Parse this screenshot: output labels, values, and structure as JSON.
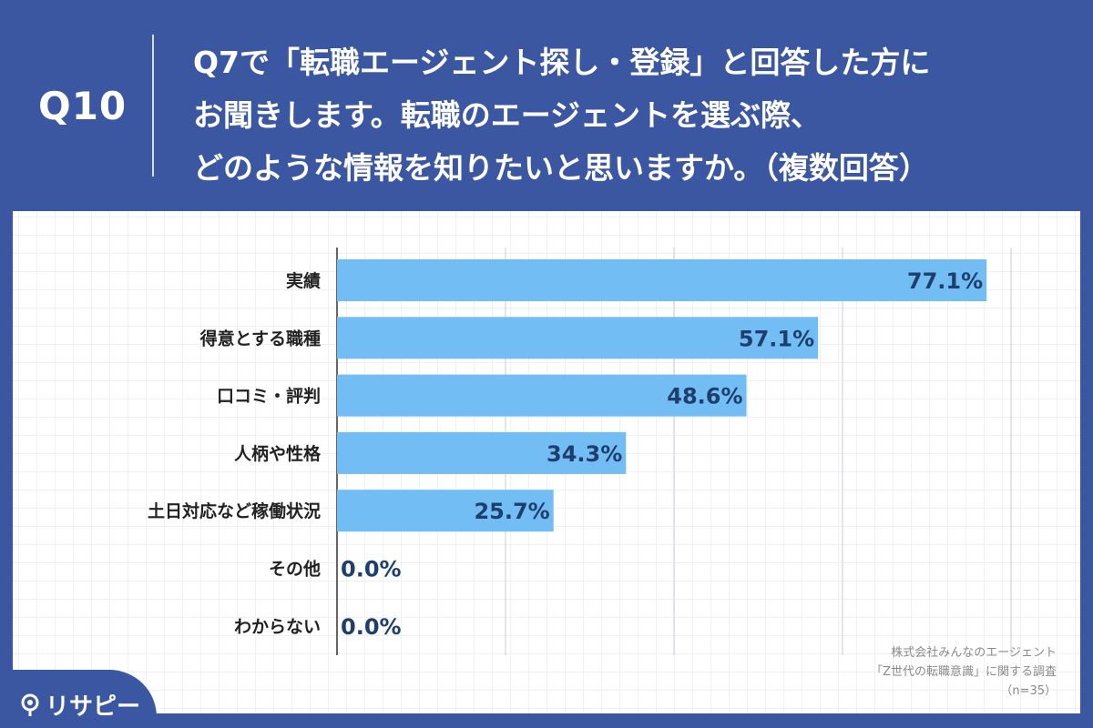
{
  "header": {
    "question_label": "Q10",
    "question_lines": [
      "Q7で「転職エージェント探し・登録」と回答した方に",
      "お聞きします。転職のエージェントを選ぶ際、",
      "どのような情報を知りたいと思いますか。（複数回答）"
    ]
  },
  "chart_data": {
    "type": "bar",
    "orientation": "horizontal",
    "categories": [
      "実績",
      "得意とする職種",
      "口コミ・評判",
      "人柄や性格",
      "土日対応など稼働状況",
      "その他",
      "わからない"
    ],
    "values": [
      77.1,
      57.1,
      48.6,
      34.3,
      25.7,
      0.0,
      0.0
    ],
    "value_labels": [
      "77.1%",
      "57.1%",
      "48.6%",
      "34.3%",
      "25.7%",
      "0.0%",
      "0.0%"
    ],
    "xlim": [
      0,
      80
    ],
    "grid": true,
    "bar_color": "#73bdf5",
    "label_color": "#1e3f6e"
  },
  "source": {
    "line1": "株式会社みんなのエージェント",
    "line2": "「Z世代の転職意識」に関する調査",
    "line3": "（n=35）"
  },
  "logo": {
    "text": "リサピー"
  }
}
